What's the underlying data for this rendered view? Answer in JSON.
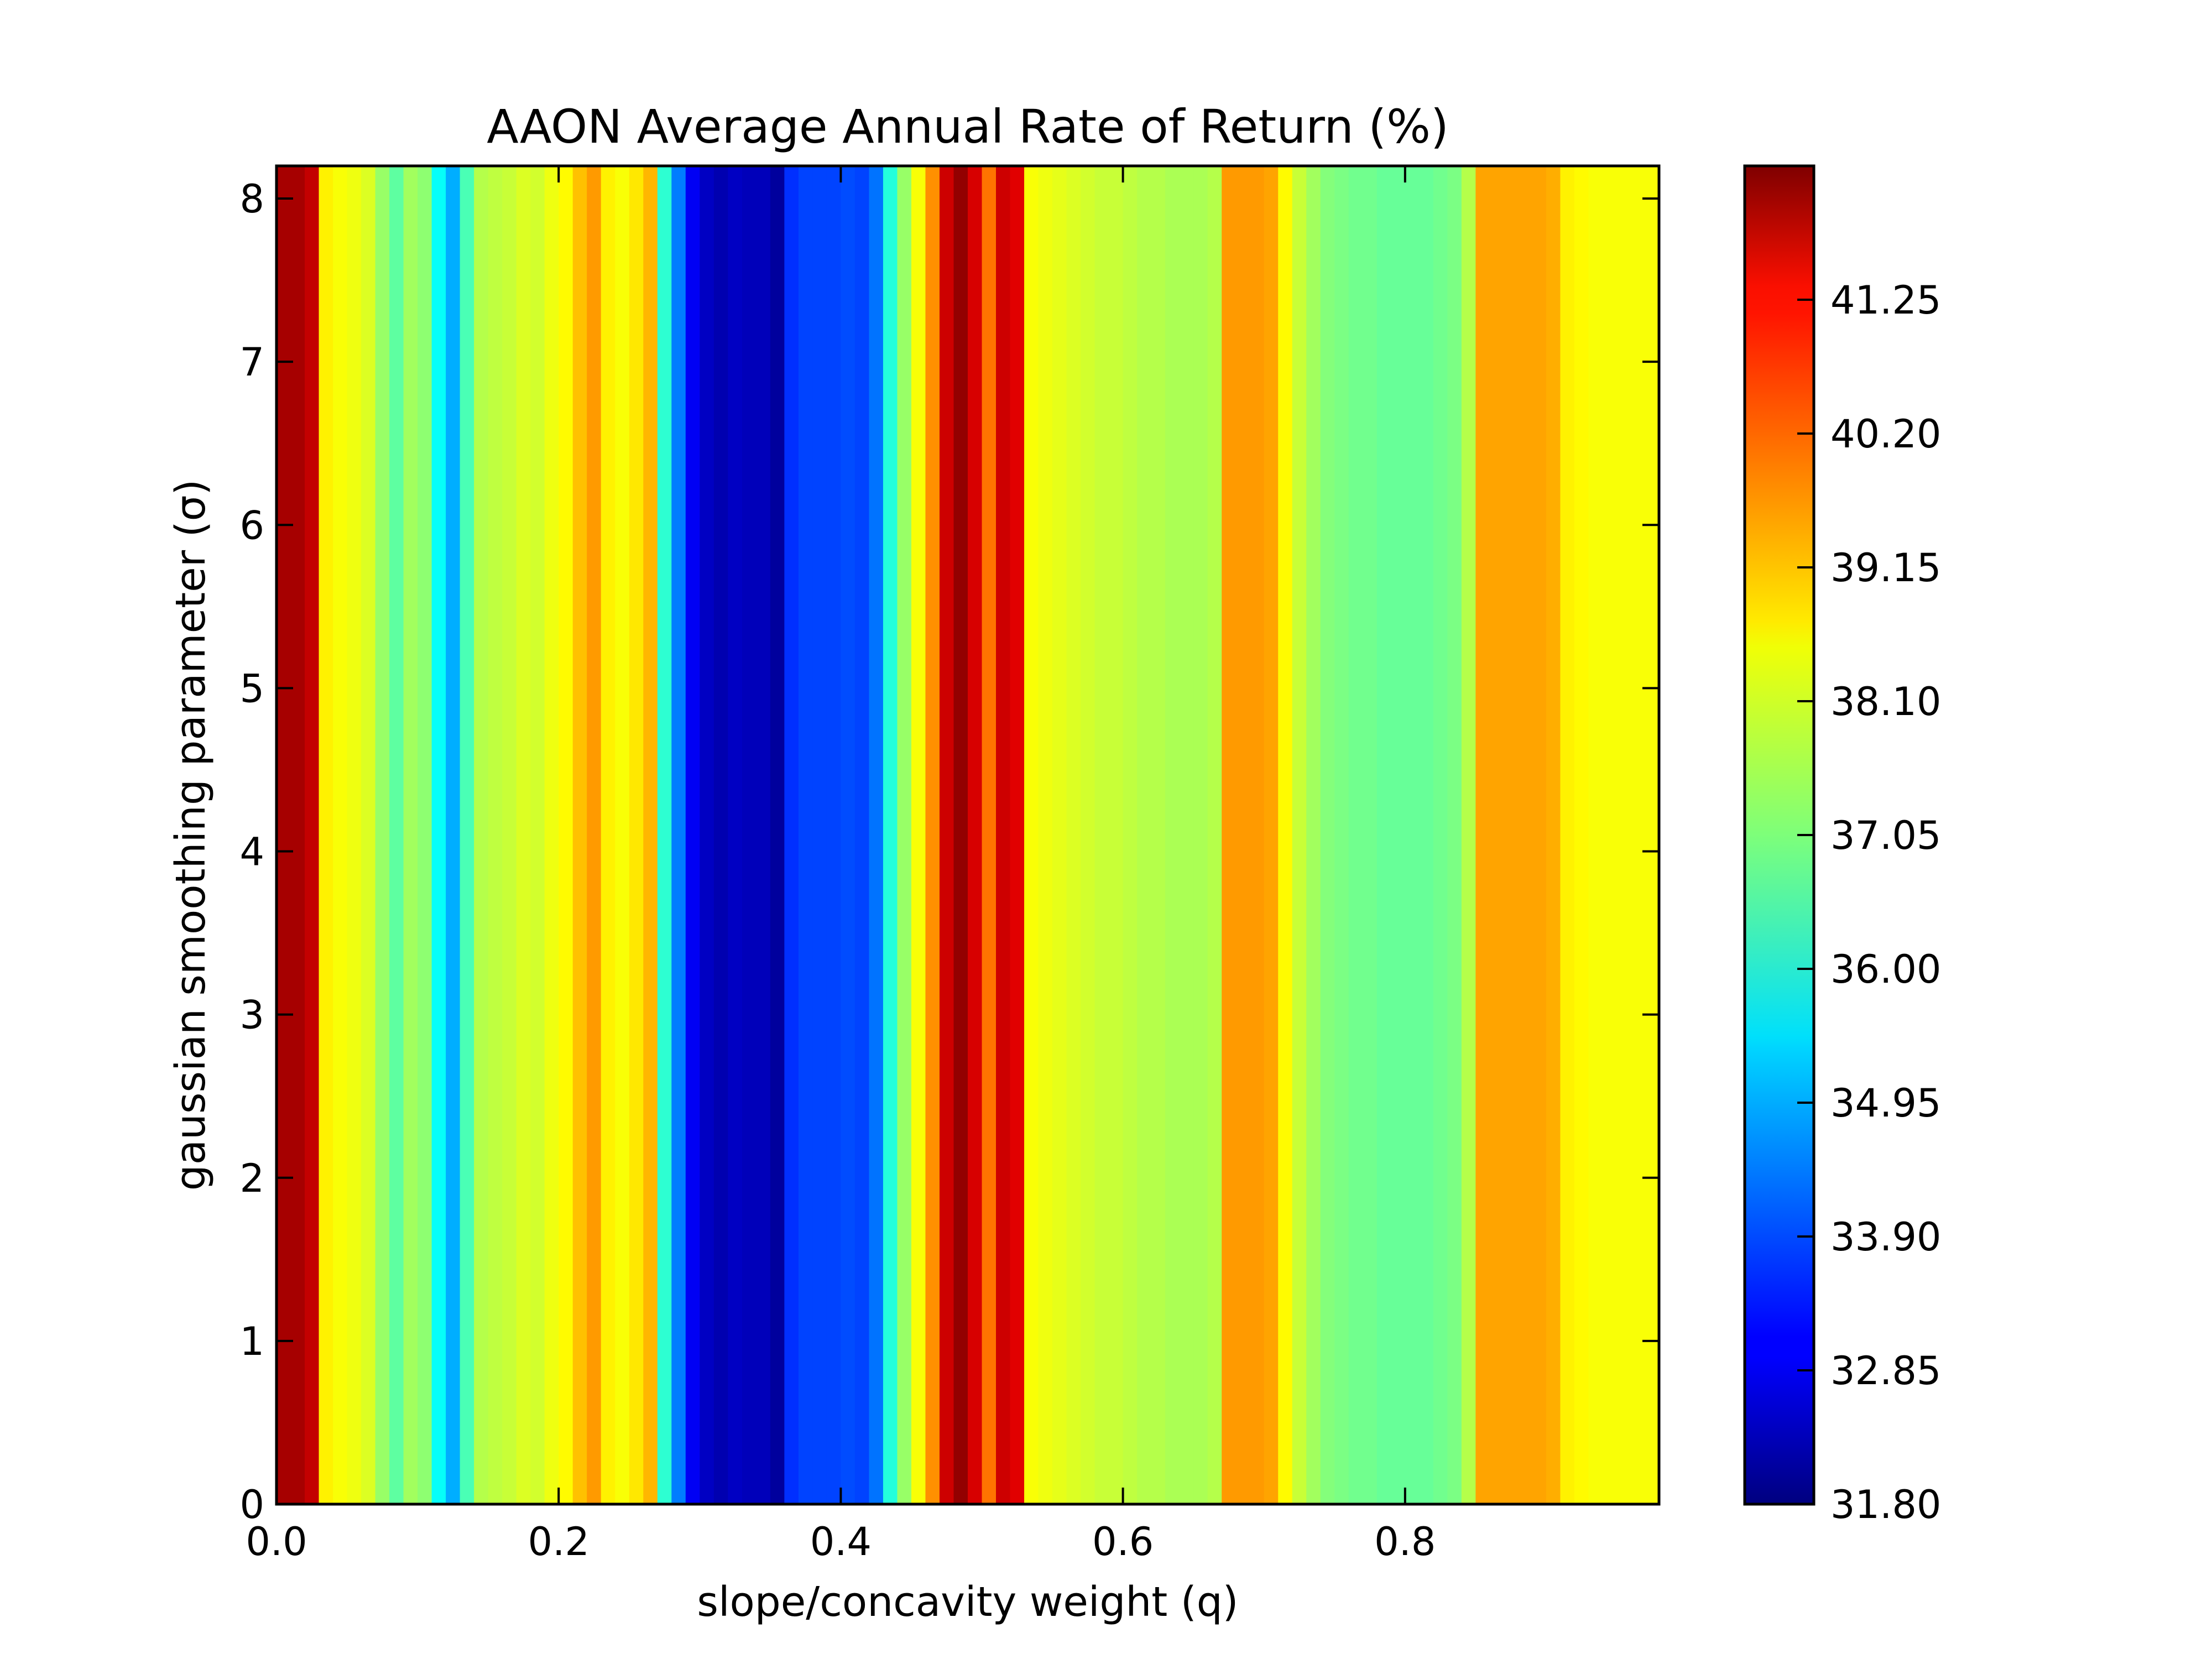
{
  "chart_data": {
    "type": "heatmap",
    "title": "AAON Average Annual Rate of Return (%)",
    "xlabel": "slope/concavity weight (q)",
    "ylabel": "gaussian smoothing parameter (σ)",
    "xlim": [
      0,
      0.98
    ],
    "ylim": [
      0,
      8.2
    ],
    "x_ticks": [
      "0.0",
      "0.2",
      "0.4",
      "0.6",
      "0.8"
    ],
    "y_ticks": [
      "0",
      "1",
      "2",
      "3",
      "4",
      "5",
      "6",
      "7",
      "8"
    ],
    "colormap": "jet",
    "colorbar": {
      "range": [
        31.8,
        42.3
      ],
      "ticks": [
        "31.80",
        "32.85",
        "33.90",
        "34.95",
        "36.00",
        "37.05",
        "38.10",
        "39.15",
        "40.20",
        "41.25"
      ]
    },
    "note_values_constant_along_y": true,
    "q": [
      0.0,
      0.01,
      0.02,
      0.03,
      0.04,
      0.05,
      0.06,
      0.07,
      0.08,
      0.09,
      0.1,
      0.11,
      0.12,
      0.13,
      0.14,
      0.15,
      0.16,
      0.17,
      0.18,
      0.19,
      0.2,
      0.21,
      0.22,
      0.23,
      0.24,
      0.25,
      0.26,
      0.27,
      0.28,
      0.29,
      0.3,
      0.31,
      0.32,
      0.33,
      0.34,
      0.35,
      0.36,
      0.37,
      0.38,
      0.39,
      0.4,
      0.41,
      0.42,
      0.43,
      0.44,
      0.45,
      0.46,
      0.47,
      0.48,
      0.49,
      0.5,
      0.51,
      0.52,
      0.53,
      0.54,
      0.55,
      0.56,
      0.57,
      0.58,
      0.59,
      0.6,
      0.61,
      0.62,
      0.63,
      0.64,
      0.65,
      0.66,
      0.67,
      0.68,
      0.69,
      0.7,
      0.71,
      0.72,
      0.73,
      0.74,
      0.75,
      0.76,
      0.77,
      0.78,
      0.79,
      0.8,
      0.81,
      0.82,
      0.83,
      0.84,
      0.85,
      0.86,
      0.87,
      0.88,
      0.89,
      0.9,
      0.91,
      0.92,
      0.93,
      0.94,
      0.95,
      0.96,
      0.97
    ],
    "values": [
      41.9,
      41.9,
      41.6,
      38.5,
      38.3,
      38.2,
      38.0,
      37.3,
      36.7,
      37.4,
      37.2,
      35.8,
      34.9,
      36.5,
      37.6,
      37.7,
      37.8,
      38.0,
      37.9,
      38.2,
      38.4,
      39.0,
      39.4,
      38.5,
      38.3,
      38.6,
      39.1,
      36.2,
      34.4,
      33.0,
      32.5,
      32.3,
      32.5,
      32.4,
      32.4,
      32.1,
      33.6,
      33.8,
      33.8,
      33.8,
      33.9,
      33.8,
      34.3,
      36.1,
      37.3,
      38.3,
      39.5,
      41.5,
      42.1,
      41.4,
      39.8,
      41.5,
      41.3,
      38.3,
      38.2,
      38.1,
      38.0,
      37.9,
      37.8,
      37.8,
      37.7,
      37.6,
      37.6,
      37.5,
      37.5,
      37.5,
      37.6,
      39.4,
      39.4,
      39.4,
      39.3,
      38.4,
      37.8,
      37.4,
      37.1,
      37.0,
      36.9,
      36.9,
      36.8,
      36.8,
      36.8,
      36.8,
      36.9,
      37.0,
      37.6,
      39.3,
      39.3,
      39.3,
      39.3,
      39.3,
      39.2,
      38.5,
      38.4,
      38.3,
      38.3,
      38.3,
      38.3,
      38.3
    ]
  }
}
